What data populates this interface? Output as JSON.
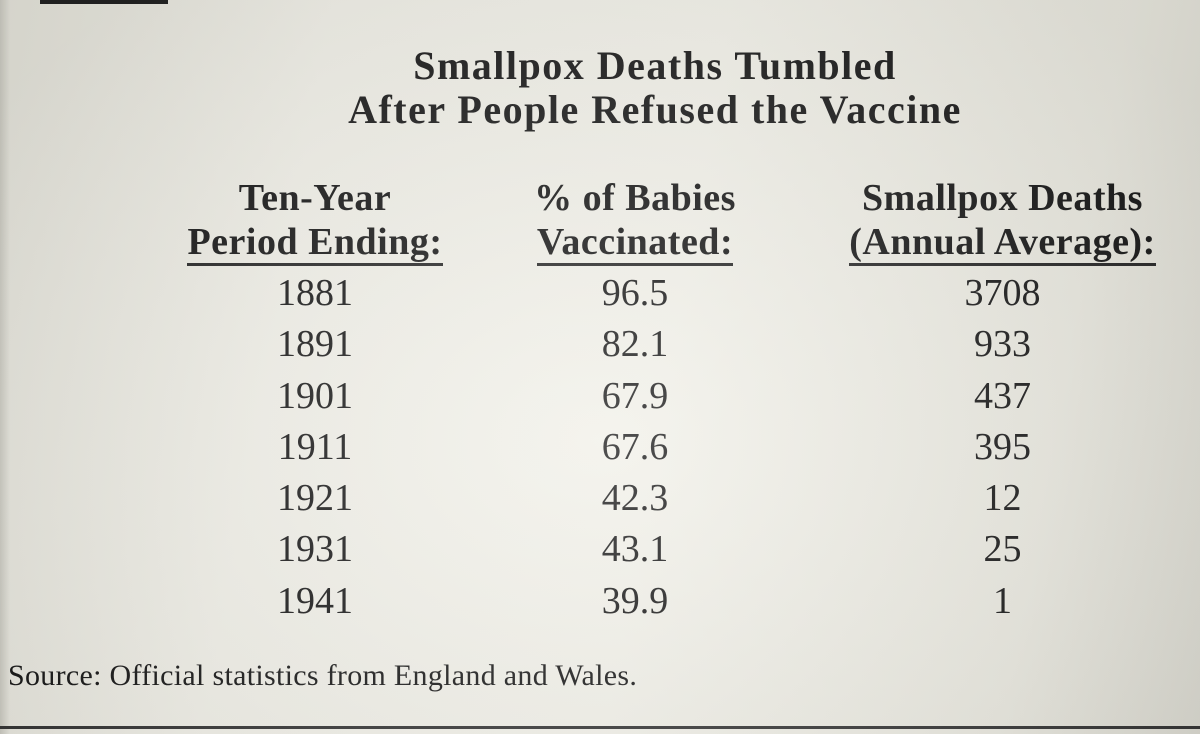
{
  "title": {
    "line1": "Smallpox Deaths Tumbled",
    "line2": "After People Refused the Vaccine"
  },
  "table": {
    "headers": [
      {
        "line1": "Ten-Year",
        "line2": "Period Ending:"
      },
      {
        "line1": "% of Babies",
        "line2": "Vaccinated:"
      },
      {
        "line1": "Smallpox Deaths",
        "line2": "(Annual Average):"
      }
    ],
    "rows": [
      [
        "1881",
        "96.5",
        "3708"
      ],
      [
        "1891",
        "82.1",
        "933"
      ],
      [
        "1901",
        "67.9",
        "437"
      ],
      [
        "1911",
        "67.6",
        "395"
      ],
      [
        "1921",
        "42.3",
        "12"
      ],
      [
        "1931",
        "43.1",
        "25"
      ],
      [
        "1941",
        "39.9",
        "1"
      ]
    ]
  },
  "source": "Source: Official statistics from England and Wales."
}
